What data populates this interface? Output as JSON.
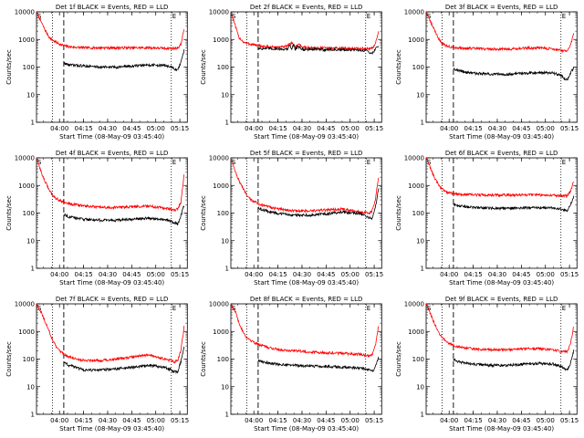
{
  "figure": {
    "x_ticks": [
      "04:00",
      "04:15",
      "04:30",
      "04:45",
      "05:00",
      "05:15"
    ],
    "y_ticks": [
      "1",
      "10",
      "100",
      "1000",
      "10000"
    ],
    "ylabel": "Counts/sec",
    "xlabel": "Start Time (08-May-09 03:45:40)",
    "marker_s": "S",
    "marker_e": "E",
    "colors": {
      "events": "#000000",
      "lld": "#ff0000",
      "axes": "#000000"
    }
  },
  "chart_data": [
    {
      "type": "line",
      "title": "Det 1f BLACK = Events, RED = LLD",
      "xlabel": "Start Time (08-May-09 03:45:40)",
      "ylabel": "Counts/sec",
      "x_unit": "minutes after 03:45:40",
      "xlim": [
        0,
        94
      ],
      "ylim": [
        1,
        10000
      ],
      "yscale": "log",
      "vlines": {
        "dotted": [
          10,
          84
        ],
        "dashed": [
          17
        ]
      },
      "series": [
        {
          "name": "LLD",
          "color": "red",
          "x": [
            0,
            5,
            8,
            10,
            12,
            14,
            17,
            20,
            25,
            30,
            40,
            50,
            60,
            70,
            80,
            86,
            88,
            90,
            92
          ],
          "y": [
            10000,
            2400,
            1200,
            950,
            800,
            700,
            600,
            550,
            520,
            500,
            500,
            500,
            500,
            500,
            480,
            480,
            500,
            650,
            2500
          ]
        },
        {
          "name": "Events",
          "color": "black",
          "x": [
            17,
            20,
            25,
            30,
            40,
            50,
            60,
            70,
            80,
            84,
            86,
            88,
            90,
            92
          ],
          "y": [
            140,
            120,
            115,
            110,
            100,
            100,
            110,
            120,
            115,
            100,
            85,
            75,
            150,
            400
          ]
        }
      ]
    },
    {
      "type": "line",
      "title": "Det 2f BLACK = Events, RED = LLD",
      "xlabel": "Start Time (08-May-09 03:45:40)",
      "ylabel": "Counts/sec",
      "x_unit": "minutes after 03:45:40",
      "xlim": [
        0,
        94
      ],
      "ylim": [
        1,
        10000
      ],
      "yscale": "log",
      "vlines": {
        "dotted": [
          10,
          84
        ],
        "dashed": [
          17
        ]
      },
      "series": [
        {
          "name": "LLD",
          "color": "red",
          "x": [
            0,
            5,
            8,
            10,
            14,
            17,
            20,
            30,
            35,
            38,
            40,
            42,
            45,
            50,
            60,
            70,
            80,
            86,
            88,
            90,
            92
          ],
          "y": [
            10000,
            1200,
            800,
            720,
            650,
            600,
            560,
            520,
            560,
            780,
            520,
            700,
            520,
            500,
            490,
            480,
            470,
            460,
            480,
            700,
            1800
          ]
        },
        {
          "name": "Events",
          "color": "black",
          "x": [
            17,
            20,
            30,
            35,
            37,
            38,
            39,
            40,
            42,
            45,
            50,
            60,
            70,
            80,
            84,
            86,
            88,
            90,
            92
          ],
          "y": [
            480,
            470,
            460,
            440,
            600,
            420,
            700,
            440,
            560,
            430,
            440,
            430,
            420,
            410,
            400,
            370,
            300,
            450,
            600
          ]
        }
      ]
    },
    {
      "type": "line",
      "title": "Det 3f BLACK = Events, RED = LLD",
      "xlabel": "Start Time (08-May-09 03:45:40)",
      "ylabel": "Counts/sec",
      "x_unit": "minutes after 03:45:40",
      "xlim": [
        0,
        94
      ],
      "ylim": [
        1,
        10000
      ],
      "yscale": "log",
      "vlines": {
        "dotted": [
          10,
          84
        ],
        "dashed": [
          17
        ]
      },
      "series": [
        {
          "name": "LLD",
          "color": "red",
          "x": [
            0,
            3,
            6,
            8,
            10,
            12,
            14,
            17,
            20,
            25,
            30,
            40,
            50,
            60,
            70,
            80,
            86,
            88,
            90,
            92
          ],
          "y": [
            10000,
            4000,
            1800,
            1000,
            720,
            600,
            560,
            520,
            500,
            480,
            470,
            450,
            450,
            480,
            500,
            450,
            380,
            380,
            600,
            1600
          ]
        },
        {
          "name": "Events",
          "color": "black",
          "x": [
            17,
            20,
            25,
            30,
            40,
            50,
            60,
            70,
            80,
            84,
            86,
            88,
            90,
            92
          ],
          "y": [
            90,
            75,
            65,
            60,
            55,
            55,
            60,
            65,
            60,
            50,
            40,
            35,
            60,
            100
          ]
        }
      ]
    },
    {
      "type": "line",
      "title": "Det 4f BLACK = Events, RED = LLD",
      "xlabel": "Start Time (08-May-09 03:45:40)",
      "ylabel": "Counts/sec",
      "x_unit": "minutes after 03:45:40",
      "xlim": [
        0,
        94
      ],
      "ylim": [
        1,
        10000
      ],
      "yscale": "log",
      "vlines": {
        "dotted": [
          10,
          84
        ],
        "dashed": [
          17
        ]
      },
      "series": [
        {
          "name": "LLD",
          "color": "red",
          "x": [
            0,
            3,
            5,
            8,
            10,
            12,
            14,
            17,
            20,
            25,
            30,
            40,
            50,
            60,
            70,
            80,
            86,
            88,
            90,
            92
          ],
          "y": [
            10000,
            3000,
            1500,
            700,
            450,
            350,
            300,
            250,
            220,
            200,
            180,
            160,
            160,
            170,
            180,
            150,
            130,
            140,
            250,
            2500
          ]
        },
        {
          "name": "Events",
          "color": "black",
          "x": [
            17,
            20,
            25,
            30,
            40,
            50,
            60,
            70,
            80,
            84,
            86,
            88,
            90,
            92
          ],
          "y": [
            90,
            75,
            65,
            60,
            55,
            55,
            60,
            65,
            60,
            50,
            45,
            40,
            80,
            200
          ]
        }
      ]
    },
    {
      "type": "line",
      "title": "Det 5f BLACK = Events, RED = LLD",
      "xlabel": "Start Time (08-May-09 03:45:40)",
      "ylabel": "Counts/sec",
      "x_unit": "minutes after 03:45:40",
      "xlim": [
        0,
        94
      ],
      "ylim": [
        1,
        10000
      ],
      "yscale": "log",
      "vlines": {
        "dotted": [
          10,
          84
        ],
        "dashed": [
          17
        ]
      },
      "series": [
        {
          "name": "LLD",
          "color": "red",
          "x": [
            0,
            3,
            5,
            8,
            10,
            12,
            14,
            17,
            20,
            25,
            30,
            40,
            50,
            60,
            70,
            80,
            86,
            88,
            90,
            92
          ],
          "y": [
            10000,
            3000,
            1500,
            700,
            420,
            320,
            270,
            220,
            190,
            160,
            140,
            120,
            120,
            130,
            140,
            110,
            100,
            120,
            300,
            2000
          ]
        },
        {
          "name": "Events",
          "color": "black",
          "x": [
            17,
            20,
            25,
            30,
            40,
            50,
            60,
            70,
            80,
            84,
            86,
            88,
            90,
            92
          ],
          "y": [
            150,
            130,
            110,
            95,
            85,
            85,
            95,
            110,
            95,
            80,
            70,
            60,
            150,
            800
          ]
        }
      ]
    },
    {
      "type": "line",
      "title": "Det 6f BLACK = Events, RED = LLD",
      "xlabel": "Start Time (08-May-09 03:45:40)",
      "ylabel": "Counts/sec",
      "x_unit": "minutes after 03:45:40",
      "xlim": [
        0,
        94
      ],
      "ylim": [
        1,
        10000
      ],
      "yscale": "log",
      "vlines": {
        "dotted": [
          10,
          84
        ],
        "dashed": [
          17
        ]
      },
      "series": [
        {
          "name": "LLD",
          "color": "red",
          "x": [
            0,
            3,
            5,
            8,
            10,
            12,
            14,
            17,
            20,
            25,
            30,
            40,
            50,
            60,
            70,
            80,
            86,
            88,
            90,
            92
          ],
          "y": [
            10000,
            4000,
            2000,
            1000,
            750,
            600,
            550,
            500,
            480,
            470,
            460,
            450,
            450,
            460,
            460,
            440,
            420,
            420,
            600,
            1500
          ]
        },
        {
          "name": "Events",
          "color": "black",
          "x": [
            17,
            20,
            25,
            30,
            40,
            50,
            60,
            70,
            80,
            84,
            86,
            88,
            90,
            92
          ],
          "y": [
            200,
            180,
            170,
            160,
            150,
            150,
            155,
            160,
            150,
            140,
            130,
            120,
            200,
            400
          ]
        }
      ]
    },
    {
      "type": "line",
      "title": "Det 7f BLACK = Events, RED = LLD",
      "xlabel": "Start Time (08-May-09 03:45:40)",
      "ylabel": "Counts/sec",
      "x_unit": "minutes after 03:45:40",
      "xlim": [
        0,
        94
      ],
      "ylim": [
        1,
        10000
      ],
      "yscale": "log",
      "vlines": {
        "dotted": [
          10,
          84
        ],
        "dashed": [
          17
        ]
      },
      "series": [
        {
          "name": "LLD",
          "color": "red",
          "x": [
            0,
            3,
            5,
            8,
            10,
            12,
            14,
            17,
            20,
            25,
            30,
            40,
            50,
            60,
            70,
            80,
            86,
            88,
            90,
            92
          ],
          "y": [
            10000,
            5000,
            2500,
            1000,
            500,
            300,
            200,
            150,
            120,
            100,
            90,
            90,
            100,
            120,
            140,
            100,
            80,
            90,
            200,
            1500
          ]
        },
        {
          "name": "Events",
          "color": "black",
          "x": [
            17,
            20,
            25,
            30,
            40,
            50,
            60,
            70,
            80,
            84,
            86,
            88,
            90,
            92
          ],
          "y": [
            80,
            60,
            50,
            40,
            40,
            45,
            50,
            60,
            50,
            40,
            35,
            35,
            80,
            300
          ]
        }
      ]
    },
    {
      "type": "line",
      "title": "Det 8f BLACK = Events, RED = LLD",
      "xlabel": "Start Time (08-May-09 03:45:40)",
      "ylabel": "Counts/sec",
      "x_unit": "minutes after 03:45:40",
      "xlim": [
        0,
        94
      ],
      "ylim": [
        1,
        10000
      ],
      "yscale": "log",
      "vlines": {
        "dotted": [
          10,
          84
        ],
        "dashed": [
          17
        ]
      },
      "series": [
        {
          "name": "LLD",
          "color": "red",
          "x": [
            0,
            3,
            5,
            8,
            10,
            12,
            14,
            17,
            20,
            25,
            30,
            40,
            50,
            60,
            70,
            80,
            86,
            88,
            90,
            92
          ],
          "y": [
            10000,
            5000,
            2000,
            900,
            600,
            500,
            420,
            350,
            300,
            250,
            220,
            200,
            180,
            170,
            160,
            150,
            130,
            140,
            300,
            1500
          ]
        },
        {
          "name": "Events",
          "color": "black",
          "x": [
            17,
            20,
            25,
            30,
            40,
            50,
            60,
            70,
            80,
            84,
            86,
            88,
            90,
            92
          ],
          "y": [
            90,
            80,
            70,
            65,
            60,
            55,
            55,
            50,
            48,
            45,
            40,
            35,
            50,
            120
          ]
        }
      ]
    },
    {
      "type": "line",
      "title": "Det 9f BLACK = Events, RED = LLD",
      "xlabel": "Start Time (08-May-09 03:45:40)",
      "ylabel": "Counts/sec",
      "x_unit": "minutes after 03:45:40",
      "xlim": [
        0,
        94
      ],
      "ylim": [
        1,
        10000
      ],
      "yscale": "log",
      "vlines": {
        "dotted": [
          10,
          84
        ],
        "dashed": [
          17
        ]
      },
      "series": [
        {
          "name": "LLD",
          "color": "red",
          "x": [
            0,
            3,
            5,
            8,
            10,
            12,
            14,
            17,
            20,
            25,
            30,
            40,
            50,
            60,
            70,
            80,
            86,
            88,
            90,
            92
          ],
          "y": [
            10000,
            4000,
            2000,
            900,
            600,
            450,
            380,
            320,
            280,
            250,
            230,
            220,
            220,
            230,
            240,
            210,
            180,
            190,
            400,
            1500
          ]
        },
        {
          "name": "Events",
          "color": "black",
          "x": [
            17,
            20,
            25,
            30,
            40,
            50,
            60,
            70,
            80,
            84,
            86,
            88,
            90,
            92
          ],
          "y": [
            100,
            80,
            70,
            65,
            60,
            60,
            65,
            70,
            65,
            55,
            45,
            40,
            70,
            200
          ]
        }
      ]
    }
  ]
}
